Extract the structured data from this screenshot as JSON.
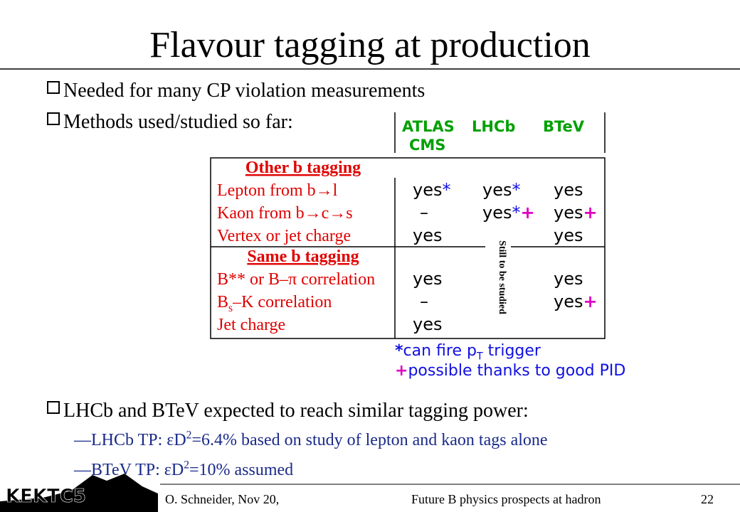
{
  "title": "Flavour tagging at production",
  "bullets": [
    "Needed for many CP violation measurements",
    "Methods used/studied so far:"
  ],
  "columns": [
    [
      "ATLAS",
      "CMS"
    ],
    [
      "LHCb"
    ],
    [
      "BTeV"
    ]
  ],
  "sections": [
    {
      "heading": "Other b tagging",
      "rows": [
        {
          "label": [
            "Lepton from b→l"
          ],
          "cells": [
            {
              "text": "yes",
              "star": "*"
            },
            {
              "text": "yes",
              "star": "*"
            },
            {
              "text": "yes"
            }
          ]
        },
        {
          "label": [
            "Kaon from b→c→s"
          ],
          "cells": [
            {
              "text": "–"
            },
            {
              "text": "yes",
              "star": "*",
              "plus": "+"
            },
            {
              "text": "yes",
              "plus": "+"
            }
          ]
        },
        {
          "label": [
            "Vertex or jet charge"
          ],
          "cells": [
            {
              "text": "yes"
            },
            null,
            {
              "text": "yes"
            }
          ]
        }
      ]
    },
    {
      "heading": "Same b tagging",
      "rows": [
        {
          "label": [
            "B** or B–π correlation"
          ],
          "cells": [
            {
              "text": "yes"
            },
            null,
            {
              "text": "yes"
            }
          ]
        },
        {
          "label": [
            "B",
            "s",
            "–K correlation"
          ],
          "cells": [
            {
              "text": "–"
            },
            null,
            {
              "text": "yes",
              "plus": "+"
            }
          ]
        },
        {
          "label": [
            "Jet charge"
          ],
          "cells": [
            {
              "text": "yes"
            },
            null,
            null
          ]
        }
      ]
    }
  ],
  "side_note": "Still to be studied",
  "notes": [
    {
      "symbol": "*",
      "parts": [
        "can fire p",
        "T",
        " trigger"
      ]
    },
    {
      "symbol": "+",
      "parts": [
        "possible thanks to good PID"
      ]
    }
  ],
  "bullet3": "LHCb and BTeV expected to reach similar tagging power:",
  "subitems": [
    {
      "parts": [
        "—LHCb TP: εD",
        "2",
        "=6.4% based on study of lepton and kaon tags alone"
      ]
    },
    {
      "parts": [
        "—BTeV TP: εD",
        "2",
        "=10% assumed"
      ]
    }
  ],
  "footer": {
    "logo": "KEKTC5",
    "author": "O. Schneider, Nov 20,",
    "event": "Future B physics prospects at hadron",
    "page": "22"
  }
}
